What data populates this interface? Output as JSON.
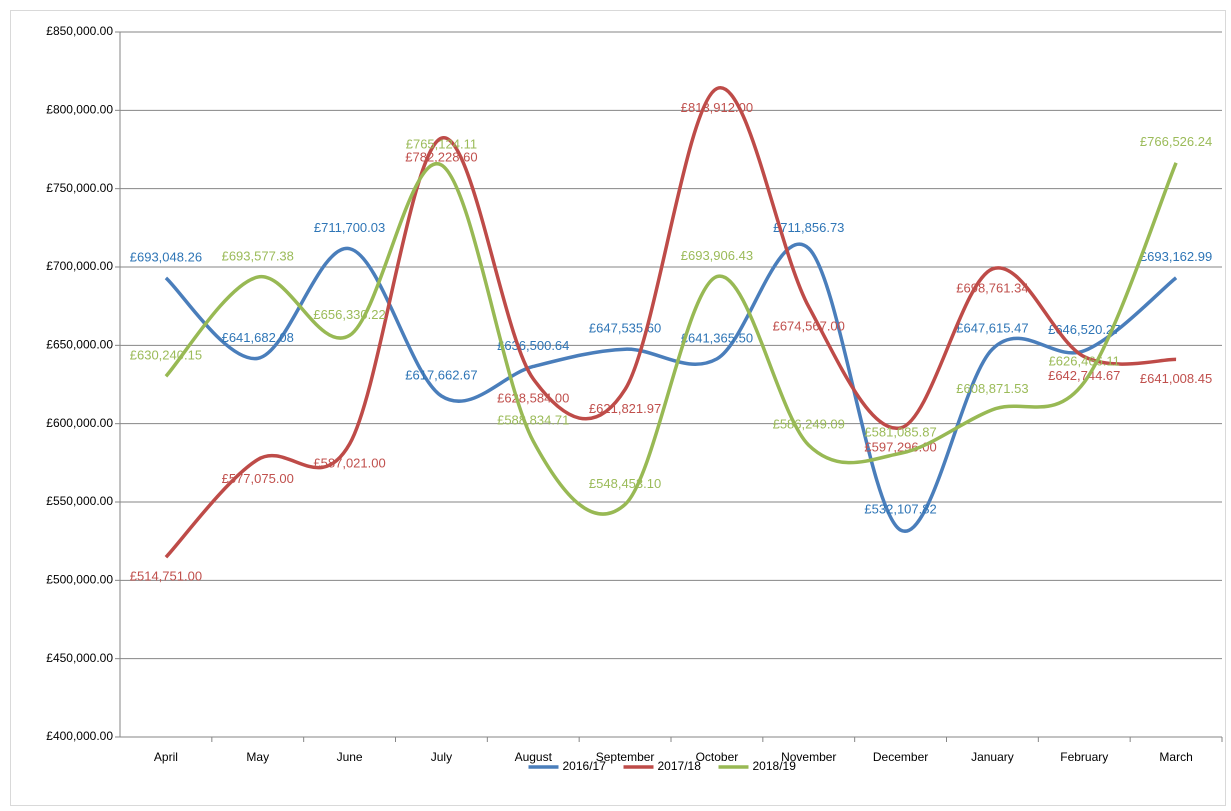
{
  "chart_data": {
    "type": "line",
    "smooth": true,
    "grid": true,
    "legend": "bottom",
    "categories": [
      "April",
      "May",
      "June",
      "July",
      "August",
      "September",
      "October",
      "November",
      "December",
      "January",
      "February",
      "March"
    ],
    "ylim": [
      400000,
      850000
    ],
    "yticks": [
      {
        "value": 400000,
        "label": "£400,000.00"
      },
      {
        "value": 450000,
        "label": "£450,000.00"
      },
      {
        "value": 500000,
        "label": "£500,000.00"
      },
      {
        "value": 550000,
        "label": "£550,000.00"
      },
      {
        "value": 600000,
        "label": "£600,000.00"
      },
      {
        "value": 650000,
        "label": "£650,000.00"
      },
      {
        "value": 700000,
        "label": "£700,000.00"
      },
      {
        "value": 750000,
        "label": "£750,000.00"
      },
      {
        "value": 800000,
        "label": "£800,000.00"
      },
      {
        "value": 850000,
        "label": "£850,000.00"
      }
    ],
    "series": [
      {
        "name": "2016/17",
        "color": "#4a7ebb",
        "label_color": "#2e75b6",
        "values": [
          693048.26,
          641682.08,
          711700.03,
          617662.67,
          636500.64,
          647535.6,
          641365.5,
          711856.73,
          532107.82,
          647615.47,
          646520.27,
          693162.99
        ],
        "value_labels": [
          "£693,048.26",
          "£641,682.08",
          "£711,700.03",
          "£617,662.67",
          "£636,500.64",
          "£647,535.60",
          "£641,365.50",
          "£711,856.73",
          "£532,107.82",
          "£647,615.47",
          "£646,520.27",
          "£693,162.99"
        ]
      },
      {
        "name": "2017/18",
        "color": "#be4b48",
        "label_color": "#c0504d",
        "values": [
          514751.0,
          577075.0,
          587021.0,
          782228.6,
          628584.0,
          621821.97,
          813912.0,
          674567.0,
          597296.0,
          698761.34,
          642744.67,
          641008.45
        ],
        "value_labels": [
          "£514,751.00",
          "£577,075.00",
          "£587,021.00",
          "£782,228.60",
          "£628,584.00",
          "£621,821.97",
          "£813,912.00",
          "£674,567.00",
          "£597,296.00",
          "£698,761.34",
          "£642,744.67",
          "£641,008.45"
        ]
      },
      {
        "name": "2018/19",
        "color": "#98b954",
        "label_color": "#9bbb59",
        "values": [
          630240.15,
          693577.38,
          656330.22,
          765124.11,
          588834.71,
          548453.1,
          693906.43,
          586249.09,
          581085.87,
          608871.53,
          626466.11,
          766526.24
        ],
        "value_labels": [
          "£630,240.15",
          "£693,577.38",
          "£656,330.22",
          "£765,124.11",
          "£588,834.71",
          "£548,453.10",
          "£693,906.43",
          "£586,249.09",
          "£581,085.87",
          "£608,871.53",
          "£626,466.11",
          "£766,526.24"
        ]
      }
    ]
  }
}
